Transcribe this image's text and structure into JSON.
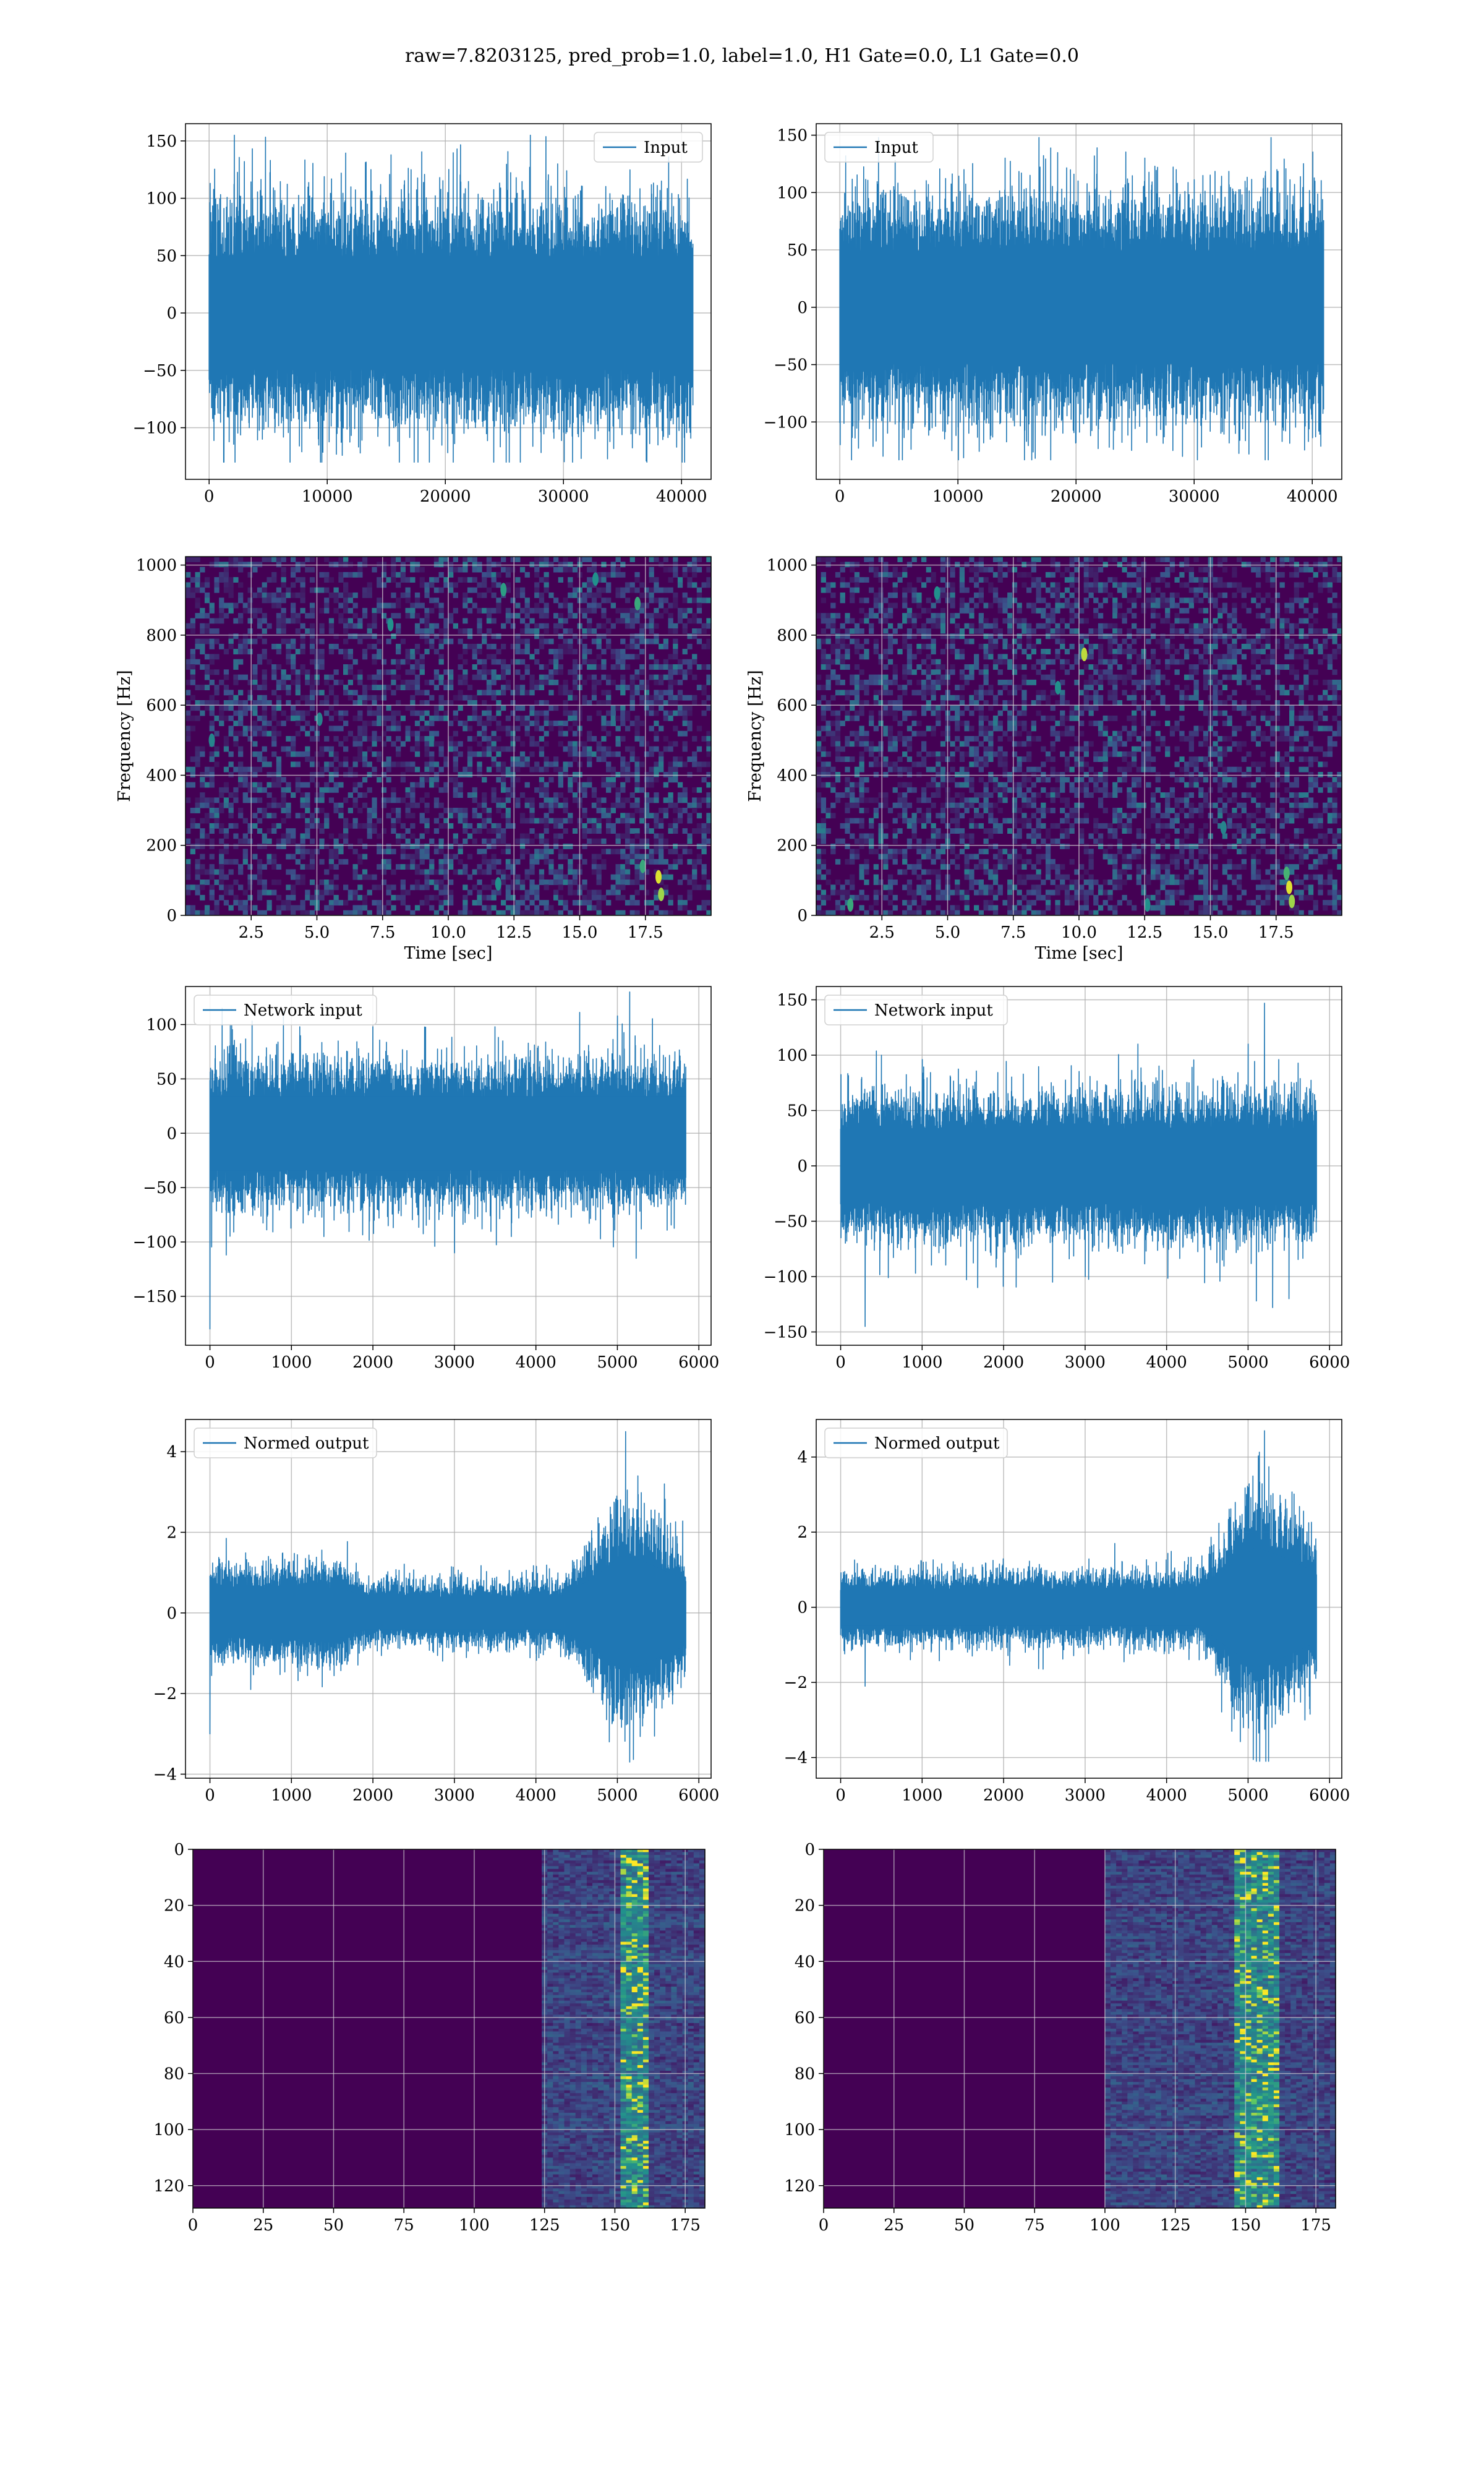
{
  "suptitle": "raw=7.8203125, pred_prob=1.0, label=1.0, H1 Gate=0.0, L1 Gate=0.0",
  "colors": {
    "line": "#1f77b4",
    "grid": "#b0b0b0",
    "viridis_low": "#440154",
    "viridis_mid": "#21918c",
    "viridis_high": "#fde725"
  },
  "chart_data": [
    {
      "id": "input-h1",
      "type": "line",
      "legend": "Input",
      "legend_loc": "upper right",
      "grid": true,
      "xlim": [
        -2000,
        42500
      ],
      "ylim": [
        -145,
        165
      ],
      "xticks": [
        0,
        10000,
        20000,
        30000,
        40000
      ],
      "yticks": [
        -100,
        -50,
        0,
        50,
        100,
        150
      ],
      "x_range": [
        0,
        40960
      ],
      "n_points": 40960,
      "envelope": [
        [
          0,
          80
        ],
        [
          40960,
          80
        ]
      ],
      "min": -130,
      "max": 155,
      "spikes": [
        [
          3000,
          132
        ],
        [
          12000,
          110
        ],
        [
          21000,
          143
        ],
        [
          26000,
          118
        ],
        [
          27200,
          155
        ],
        [
          29500,
          130
        ],
        [
          2200,
          -130
        ],
        [
          4500,
          -110
        ],
        [
          16000,
          -112
        ],
        [
          37000,
          -129
        ],
        [
          38000,
          -115
        ]
      ]
    },
    {
      "id": "input-l1",
      "type": "line",
      "legend": "Input",
      "legend_loc": "upper left",
      "grid": true,
      "xlim": [
        -2000,
        42500
      ],
      "ylim": [
        -150,
        160
      ],
      "xticks": [
        0,
        10000,
        20000,
        30000,
        40000
      ],
      "yticks": [
        -100,
        -50,
        0,
        50,
        100,
        150
      ],
      "x_range": [
        0,
        40960
      ],
      "n_points": 40960,
      "envelope": [
        [
          0,
          80
        ],
        [
          40960,
          80
        ]
      ],
      "min": -133,
      "max": 148,
      "spikes": [
        [
          500,
          132
        ],
        [
          10500,
          120
        ],
        [
          14000,
          130
        ],
        [
          28500,
          120
        ],
        [
          36500,
          148
        ],
        [
          37000,
          120
        ],
        [
          1000,
          -133
        ],
        [
          9500,
          -125
        ],
        [
          20000,
          -118
        ],
        [
          29000,
          -130
        ],
        [
          33500,
          -110
        ]
      ]
    },
    {
      "id": "spec-h1",
      "type": "heatmap",
      "colormap": "viridis",
      "xlabel": "Time [sec]",
      "ylabel": "Frequency [Hz]",
      "grid": true,
      "xlim": [
        0,
        20
      ],
      "ylim": [
        0,
        1024
      ],
      "xticks": [
        2.5,
        5.0,
        7.5,
        10.0,
        12.5,
        15.0,
        17.5
      ],
      "yticks": [
        0,
        200,
        400,
        600,
        800,
        1000
      ],
      "hotspots": [
        [
          18.0,
          110,
          0.95
        ],
        [
          18.1,
          60,
          0.85
        ],
        [
          17.4,
          140,
          0.6
        ],
        [
          17.2,
          890,
          0.6
        ],
        [
          12.1,
          930,
          0.55
        ],
        [
          15.6,
          960,
          0.5
        ],
        [
          7.8,
          830,
          0.5
        ],
        [
          5.1,
          560,
          0.45
        ],
        [
          1.0,
          500,
          0.45
        ],
        [
          11.9,
          90,
          0.5
        ]
      ]
    },
    {
      "id": "spec-l1",
      "type": "heatmap",
      "colormap": "viridis",
      "xlabel": "Time [sec]",
      "ylabel": "Frequency [Hz]",
      "grid": true,
      "xlim": [
        0,
        20
      ],
      "ylim": [
        0,
        1024
      ],
      "xticks": [
        2.5,
        5.0,
        7.5,
        10.0,
        12.5,
        15.0,
        17.5
      ],
      "yticks": [
        0,
        200,
        400,
        600,
        800,
        1000
      ],
      "hotspots": [
        [
          18.0,
          80,
          0.95
        ],
        [
          18.1,
          40,
          0.85
        ],
        [
          17.9,
          120,
          0.65
        ],
        [
          10.2,
          745,
          0.9
        ],
        [
          4.6,
          920,
          0.5
        ],
        [
          9.2,
          650,
          0.5
        ],
        [
          1.3,
          30,
          0.6
        ],
        [
          12.6,
          30,
          0.5
        ],
        [
          15.5,
          250,
          0.45
        ]
      ]
    },
    {
      "id": "net-h1",
      "type": "line",
      "legend": "Network input",
      "legend_loc": "upper left",
      "grid": true,
      "xlim": [
        -300,
        6150
      ],
      "ylim": [
        -195,
        135
      ],
      "xticks": [
        0,
        1000,
        2000,
        3000,
        4000,
        5000,
        6000
      ],
      "yticks": [
        -150,
        -100,
        -50,
        0,
        50,
        100
      ],
      "x_range": [
        0,
        5840
      ],
      "n_points": 5840,
      "envelope": [
        [
          0,
          55
        ],
        [
          5840,
          55
        ]
      ],
      "min": -180,
      "max": 130,
      "spikes": [
        [
          0,
          -180
        ],
        [
          150,
          115
        ],
        [
          200,
          -112
        ],
        [
          900,
          112
        ],
        [
          1100,
          98
        ],
        [
          1400,
          -95
        ],
        [
          2000,
          98
        ],
        [
          3000,
          -110
        ],
        [
          3500,
          98
        ],
        [
          3700,
          -95
        ],
        [
          5000,
          108
        ],
        [
          5150,
          130
        ],
        [
          5230,
          -115
        ]
      ]
    },
    {
      "id": "net-l1",
      "type": "line",
      "legend": "Network input",
      "legend_loc": "upper left",
      "grid": true,
      "xlim": [
        -300,
        6150
      ],
      "ylim": [
        -162,
        162
      ],
      "xticks": [
        0,
        1000,
        2000,
        3000,
        4000,
        5000,
        6000
      ],
      "yticks": [
        -150,
        -100,
        -50,
        0,
        50,
        100,
        150
      ],
      "x_range": [
        0,
        5840
      ],
      "n_points": 5840,
      "envelope": [
        [
          0,
          55
        ],
        [
          5840,
          55
        ]
      ],
      "min": -145,
      "max": 147,
      "spikes": [
        [
          300,
          -145
        ],
        [
          500,
          100
        ],
        [
          1000,
          96
        ],
        [
          2600,
          -105
        ],
        [
          3650,
          110
        ],
        [
          5000,
          110
        ],
        [
          5100,
          -122
        ],
        [
          5200,
          147
        ],
        [
          5300,
          -128
        ],
        [
          5500,
          -120
        ]
      ]
    },
    {
      "id": "out-h1",
      "type": "line",
      "legend": "Normed output",
      "legend_loc": "upper left",
      "grid": true,
      "xlim": [
        -300,
        6150
      ],
      "ylim": [
        -4.1,
        4.8
      ],
      "xticks": [
        0,
        1000,
        2000,
        3000,
        4000,
        5000,
        6000
      ],
      "yticks": [
        -4,
        -2,
        0,
        2,
        4
      ],
      "x_range": [
        0,
        5840
      ],
      "n_points": 5840,
      "envelope": [
        [
          0,
          1.0
        ],
        [
          1600,
          1.0
        ],
        [
          1900,
          0.65
        ],
        [
          4300,
          0.65
        ],
        [
          4700,
          1.4
        ],
        [
          5050,
          2.3
        ],
        [
          5300,
          2.1
        ],
        [
          5840,
          1.3
        ]
      ],
      "min": -3.7,
      "max": 4.5,
      "spikes": [
        [
          0,
          -3.0
        ],
        [
          200,
          1.85
        ],
        [
          500,
          -1.9
        ],
        [
          5100,
          4.5
        ],
        [
          5150,
          -3.7
        ],
        [
          5250,
          3.4
        ],
        [
          4900,
          -3.2
        ]
      ]
    },
    {
      "id": "out-l1",
      "type": "line",
      "legend": "Normed output",
      "legend_loc": "upper left",
      "grid": true,
      "xlim": [
        -300,
        6150
      ],
      "ylim": [
        -4.55,
        5.0
      ],
      "xticks": [
        0,
        1000,
        2000,
        3000,
        4000,
        5000,
        6000
      ],
      "yticks": [
        -4,
        -2,
        0,
        2,
        4
      ],
      "x_range": [
        0,
        5840
      ],
      "n_points": 5840,
      "envelope": [
        [
          0,
          0.8
        ],
        [
          4400,
          0.8
        ],
        [
          4700,
          1.6
        ],
        [
          5100,
          2.6
        ],
        [
          5400,
          2.2
        ],
        [
          5840,
          1.5
        ]
      ],
      "min": -4.1,
      "max": 4.7,
      "spikes": [
        [
          300,
          -2.1
        ],
        [
          5200,
          4.7
        ],
        [
          5100,
          -4.1
        ],
        [
          5220,
          -4.1
        ],
        [
          4800,
          -3.3
        ],
        [
          5700,
          -3.0
        ]
      ]
    },
    {
      "id": "feat-h1",
      "type": "heatmap",
      "colormap": "viridis",
      "grid": true,
      "origin": "upper",
      "xlim": [
        0,
        182
      ],
      "ylim": [
        128,
        0
      ],
      "xticks": [
        0,
        25,
        50,
        75,
        100,
        125,
        150,
        175
      ],
      "yticks": [
        0,
        20,
        40,
        60,
        80,
        100,
        120
      ],
      "active_columns": [
        125,
        182
      ],
      "peak_columns": [
        153,
        162
      ]
    },
    {
      "id": "feat-l1",
      "type": "heatmap",
      "colormap": "viridis",
      "grid": true,
      "origin": "upper",
      "xlim": [
        0,
        182
      ],
      "ylim": [
        128,
        0
      ],
      "xticks": [
        0,
        25,
        50,
        75,
        100,
        125,
        150,
        175
      ],
      "yticks": [
        0,
        20,
        40,
        60,
        80,
        100,
        120
      ],
      "active_columns": [
        100,
        182
      ],
      "peak_columns": [
        147,
        162
      ]
    }
  ]
}
